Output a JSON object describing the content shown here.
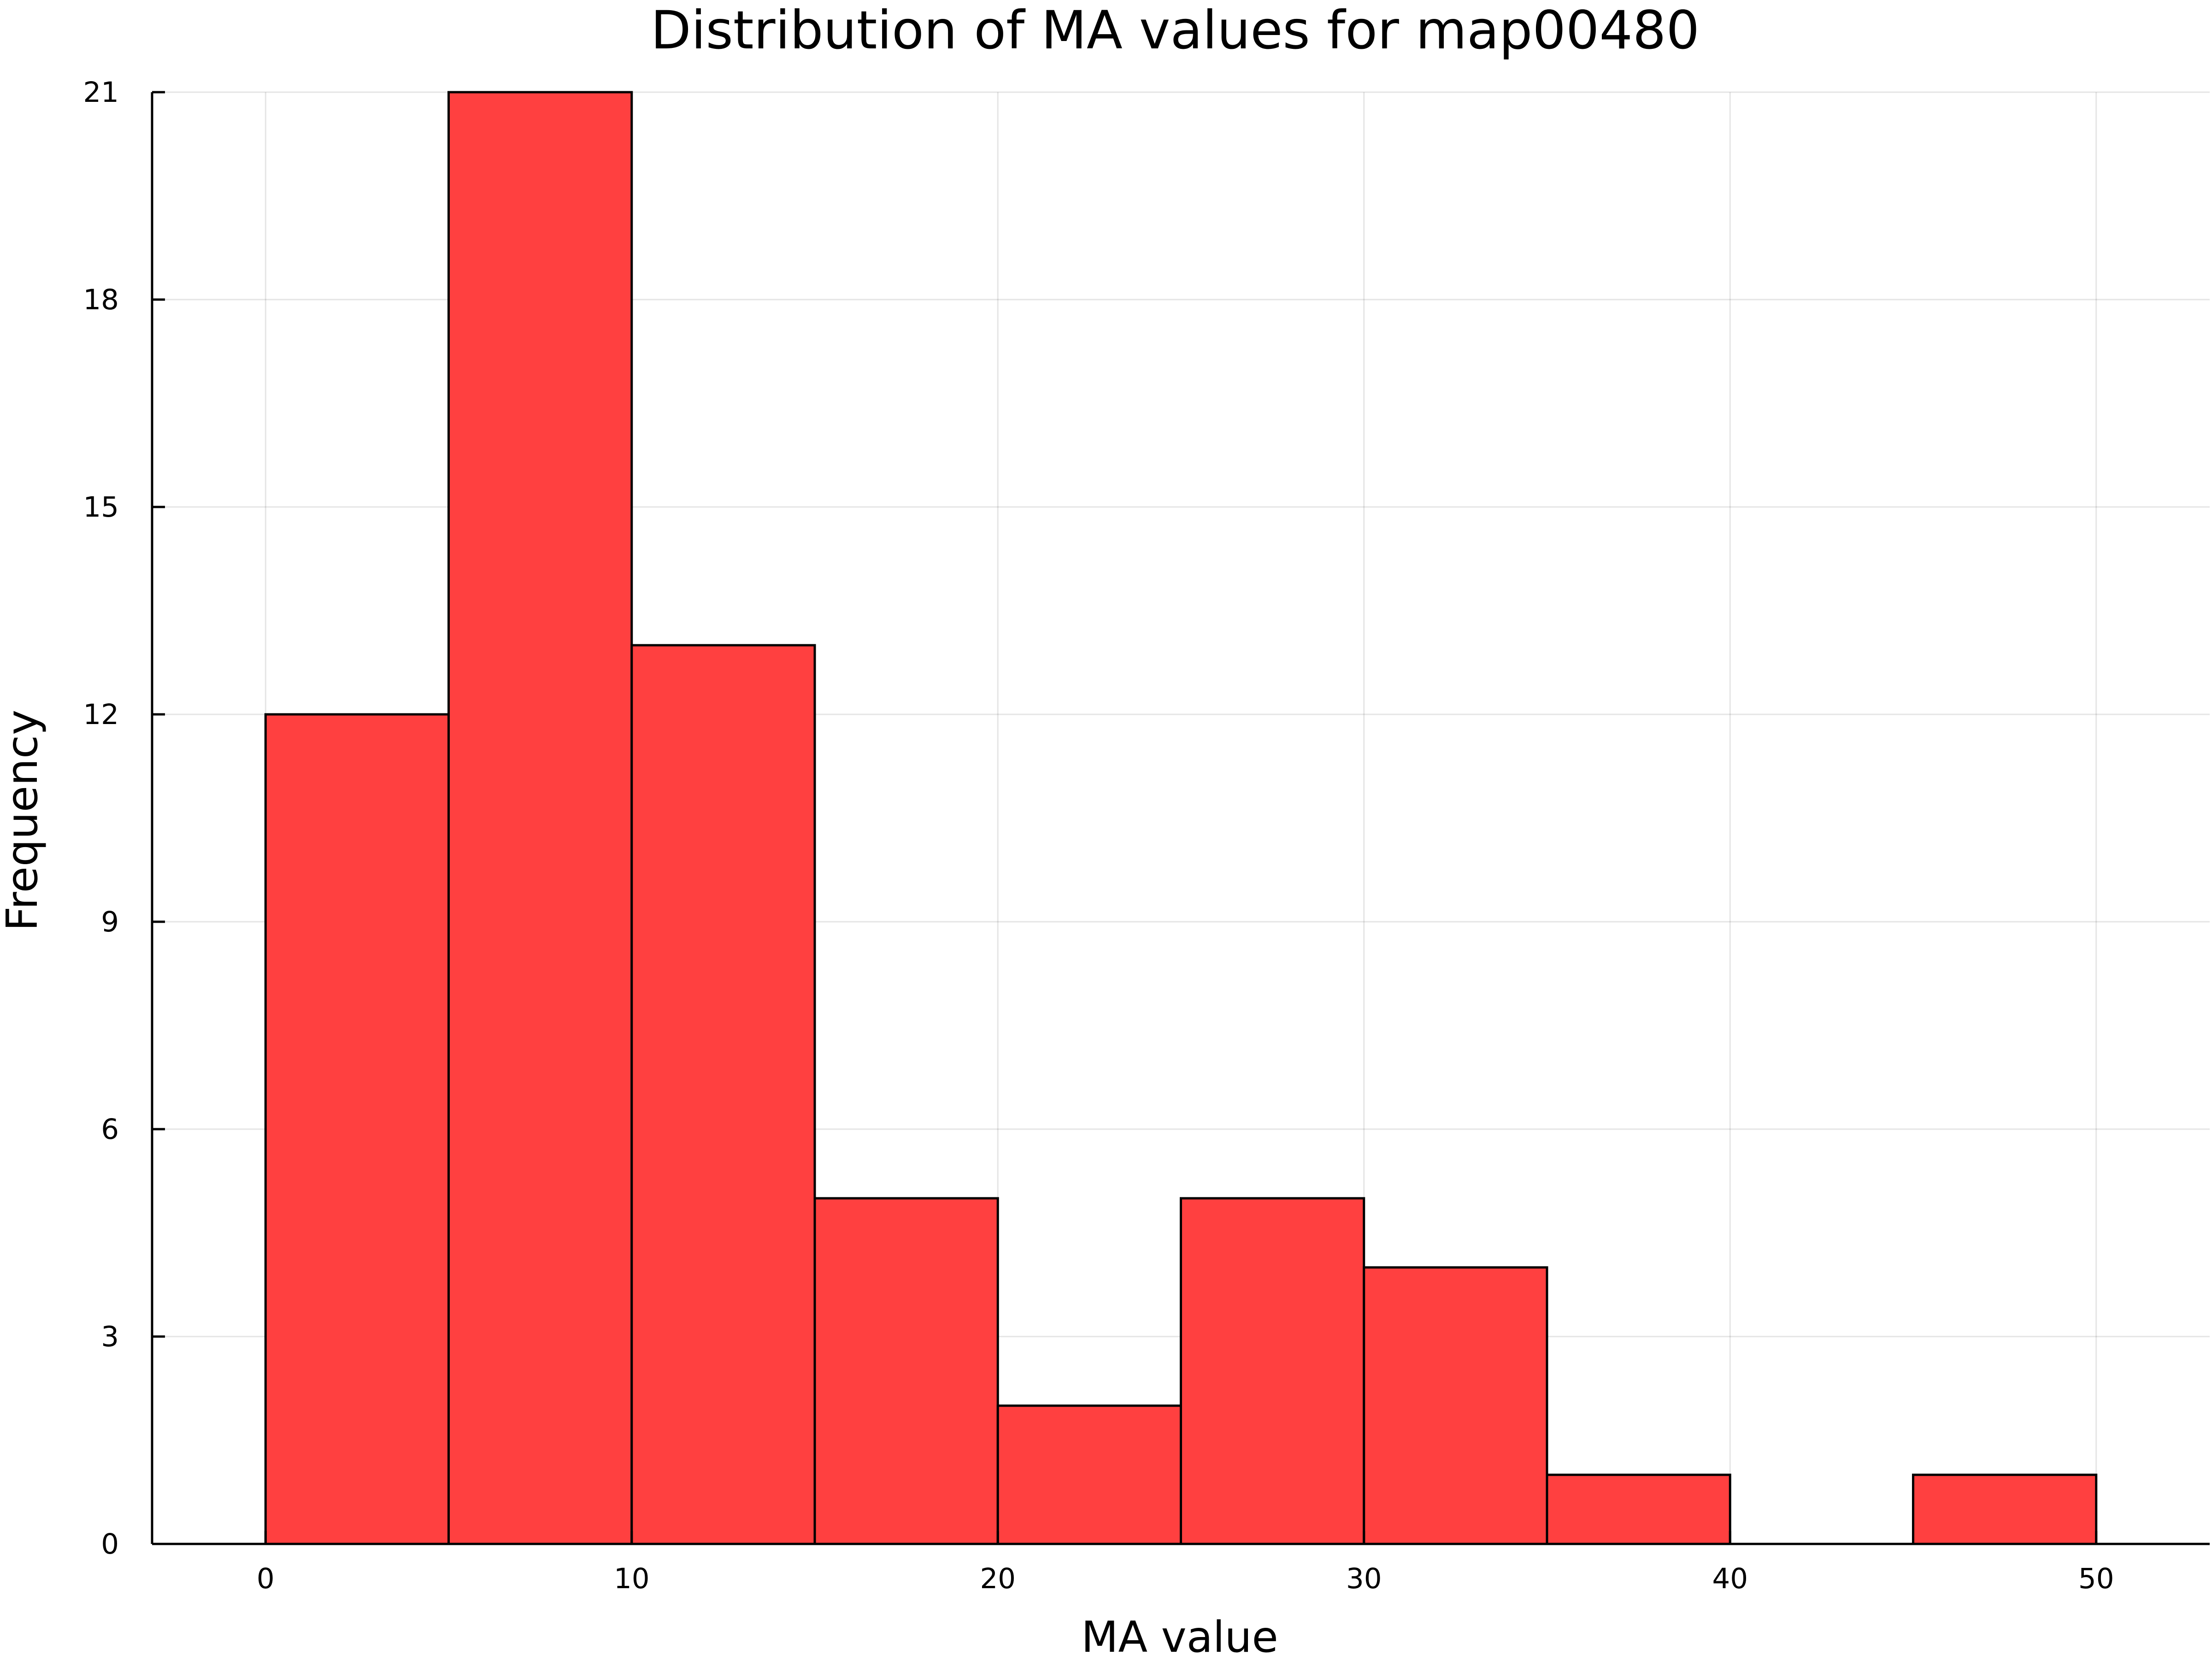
{
  "chart_data": {
    "type": "bar",
    "title": "Distribution of MA values for map00480",
    "xlabel": "MA value",
    "ylabel": "Frequency",
    "bins": [
      {
        "start": 0,
        "end": 5,
        "count": 12
      },
      {
        "start": 5,
        "end": 10,
        "count": 21
      },
      {
        "start": 10,
        "end": 15,
        "count": 13
      },
      {
        "start": 15,
        "end": 20,
        "count": 5
      },
      {
        "start": 20,
        "end": 25,
        "count": 2
      },
      {
        "start": 25,
        "end": 30,
        "count": 5
      },
      {
        "start": 30,
        "end": 35,
        "count": 4
      },
      {
        "start": 35,
        "end": 40,
        "count": 1
      },
      {
        "start": 40,
        "end": 45,
        "count": 0
      },
      {
        "start": 45,
        "end": 50,
        "count": 1
      }
    ],
    "xlim": [
      -3.1,
      53.1
    ],
    "ylim": [
      0,
      21
    ],
    "xticks": [
      0,
      10,
      20,
      30,
      40,
      50
    ],
    "yticks": [
      0,
      3,
      6,
      9,
      12,
      15,
      18,
      21
    ],
    "grid": true,
    "legend": "none",
    "colors": {
      "bar_fill": "#ff4040",
      "bar_edge": "#000000"
    }
  }
}
